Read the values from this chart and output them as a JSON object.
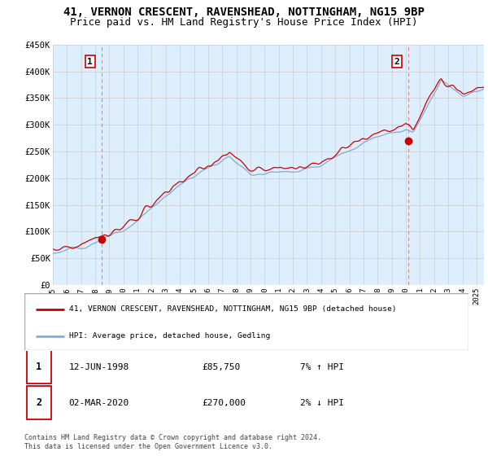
{
  "title": "41, VERNON CRESCENT, RAVENSHEAD, NOTTINGHAM, NG15 9BP",
  "subtitle": "Price paid vs. HM Land Registry's House Price Index (HPI)",
  "ylabel_ticks": [
    "£0",
    "£50K",
    "£100K",
    "£150K",
    "£200K",
    "£250K",
    "£300K",
    "£350K",
    "£400K",
    "£450K"
  ],
  "ytick_values": [
    0,
    50000,
    100000,
    150000,
    200000,
    250000,
    300000,
    350000,
    400000,
    450000
  ],
  "ylim": [
    0,
    450000
  ],
  "xlim_start": 1995.0,
  "xlim_end": 2025.5,
  "xtick_years": [
    1995,
    1996,
    1997,
    1998,
    1999,
    2000,
    2001,
    2002,
    2003,
    2004,
    2005,
    2006,
    2007,
    2008,
    2009,
    2010,
    2011,
    2012,
    2013,
    2014,
    2015,
    2016,
    2017,
    2018,
    2019,
    2020,
    2021,
    2022,
    2023,
    2024,
    2025
  ],
  "sale1_x": 1998.45,
  "sale1_y": 85750,
  "sale1_label": "1",
  "sale2_x": 2020.17,
  "sale2_y": 270000,
  "sale2_label": "2",
  "marker_color": "#cc0000",
  "line_color_red": "#cc0000",
  "line_color_blue": "#88aacc",
  "vline_color": "#dd8888",
  "grid_color": "#cccccc",
  "chart_bg_color": "#ddeeff",
  "background_color": "#ffffff",
  "legend_entry1": "41, VERNON CRESCENT, RAVENSHEAD, NOTTINGHAM, NG15 9BP (detached house)",
  "legend_entry2": "HPI: Average price, detached house, Gedling",
  "table_row1_num": "1",
  "table_row1_date": "12-JUN-1998",
  "table_row1_price": "£85,750",
  "table_row1_hpi": "7% ↑ HPI",
  "table_row2_num": "2",
  "table_row2_date": "02-MAR-2020",
  "table_row2_price": "£270,000",
  "table_row2_hpi": "2% ↓ HPI",
  "footer": "Contains HM Land Registry data © Crown copyright and database right 2024.\nThis data is licensed under the Open Government Licence v3.0.",
  "title_fontsize": 10,
  "subtitle_fontsize": 9
}
